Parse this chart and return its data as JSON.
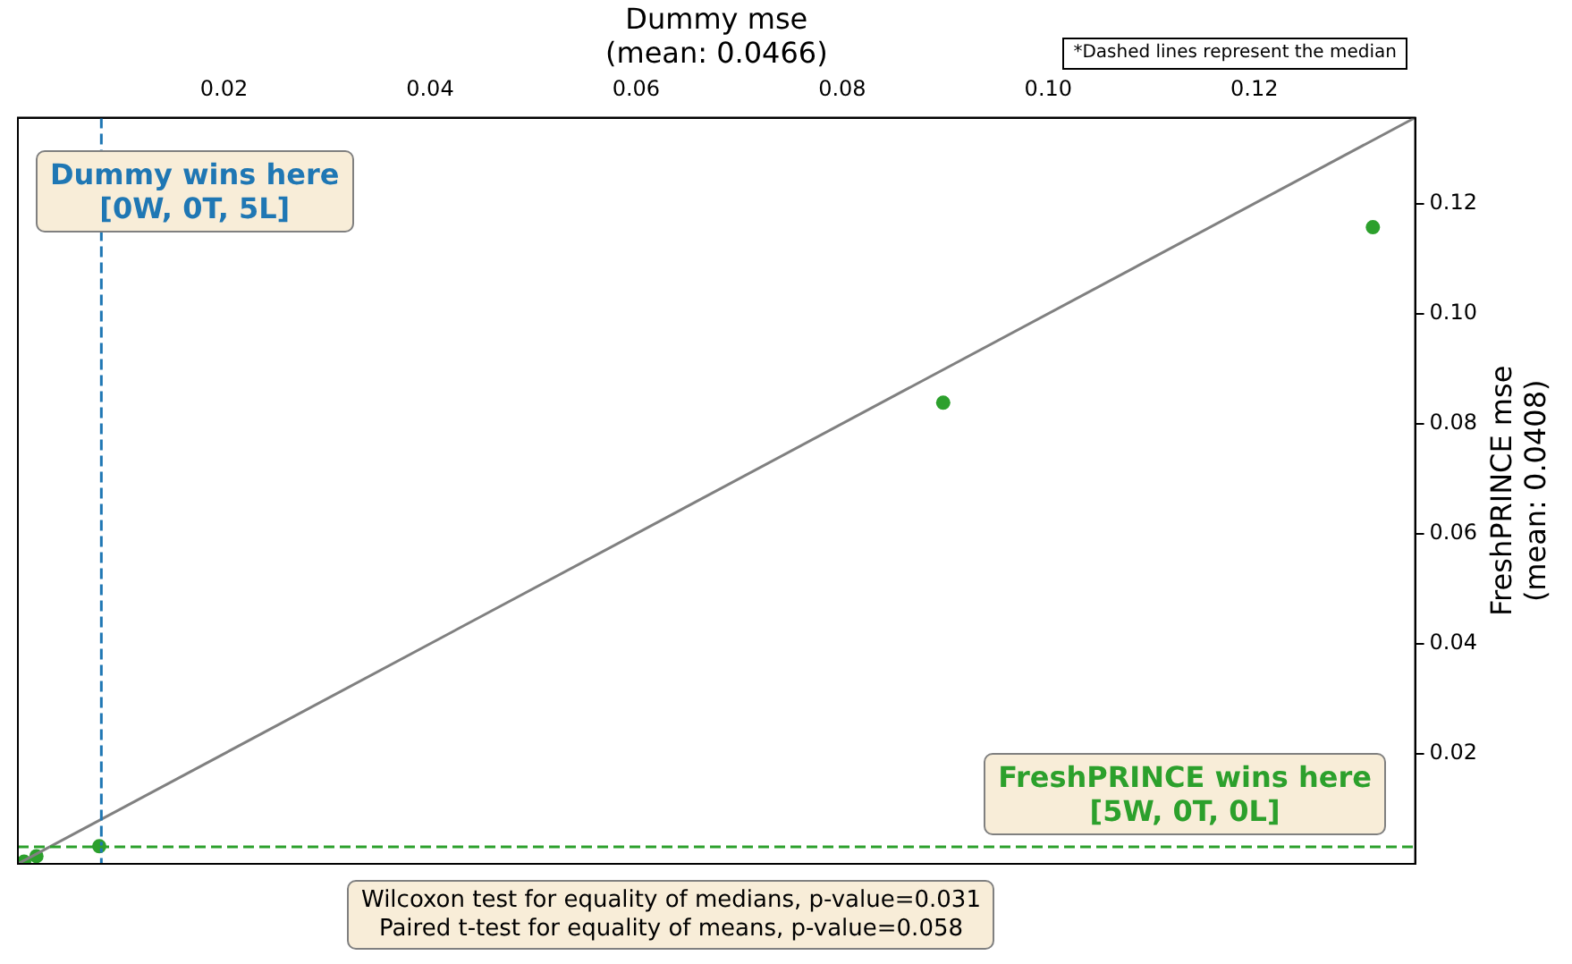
{
  "chart_data": {
    "type": "scatter",
    "xlabel": "Dummy mse\n(mean: 0.0466)",
    "ylabel": "FreshPRINCE mse\n(mean: 0.0408)",
    "xlim": [
      0,
      0.1356
    ],
    "xticks": [
      0.02,
      0.04,
      0.06,
      0.08,
      {
        "value": 0.1,
        "label": "0.10"
      },
      0.12
    ],
    "ylim": [
      0,
      0.1356
    ],
    "yticks": [
      0.02,
      0.04,
      0.06,
      0.08,
      {
        "value": 0.1,
        "label": "0.10"
      },
      0.12
    ],
    "series": [
      {
        "type": "line",
        "color": "#808080",
        "x": [
          0,
          0.1356
        ],
        "values": [
          0,
          0.1356
        ],
        "marker": "none",
        "line_style": "solid"
      },
      {
        "color": "#2ca02c",
        "x": [
          0.0006,
          0.0018,
          0.0079,
          0.0898,
          0.1315
        ],
        "values": [
          0.0004,
          0.0014,
          0.0032,
          0.0838,
          0.1157
        ],
        "marker": "circle"
      }
    ],
    "ref_lines": [
      {
        "axis": "x",
        "value": 0.0081,
        "color": "#1f77b4",
        "line_style": "dashed"
      },
      {
        "axis": "y",
        "value": 0.0031,
        "color": "#2ca02c",
        "line_style": "dashed"
      }
    ],
    "annotations": [
      "Dummy wins here\n[0W, 0T, 5L]",
      "FreshPRINCE wins here\n[5W, 0T, 0L]",
      "Wilcoxon test for equality of medians, p-value=0.031\nPaired t-test for equality of means, p-value=0.058",
      "*Dashed lines represent the median"
    ],
    "grid": false,
    "legend": false
  }
}
